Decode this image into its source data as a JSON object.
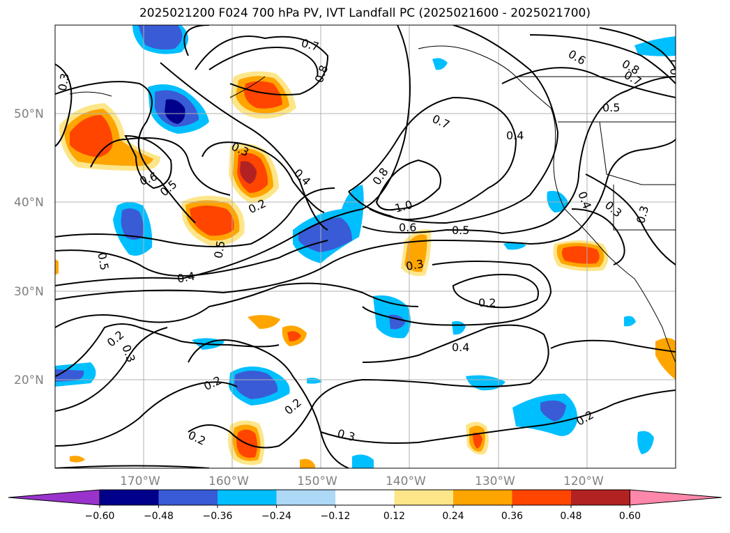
{
  "title": "2025021200 F024 700 hPa PV, IVT Landfall PC (2025021600 - 2025021700)",
  "map": {
    "lon_range": [
      -180,
      -110
    ],
    "lat_range": [
      10,
      60
    ],
    "lat_labels": [
      {
        "value": 50,
        "text": "50°N"
      },
      {
        "value": 40,
        "text": "40°N"
      },
      {
        "value": 30,
        "text": "30°N"
      },
      {
        "value": 20,
        "text": "20°N"
      }
    ],
    "lon_labels": [
      {
        "value": -170,
        "text": "170°W"
      },
      {
        "value": -160,
        "text": "160°W"
      },
      {
        "value": -150,
        "text": "150°W"
      },
      {
        "value": -140,
        "text": "140°W"
      },
      {
        "value": -130,
        "text": "130°W"
      },
      {
        "value": -120,
        "text": "120°W"
      }
    ],
    "grid": true,
    "contour_labels": [
      "0.3",
      "0.7",
      "0.8",
      "0.6",
      "0.8",
      "0.7",
      "0.5",
      "0.3",
      "0.6",
      "0.5",
      "0.4",
      "0.3",
      "0.2",
      "0.5",
      "0.5",
      "0.4",
      "0.7",
      "0.4",
      "0.8",
      "1.0",
      "0.6",
      "0.5",
      "0.3",
      "0.4",
      "0.3",
      "0.2",
      "0.2",
      "0.4",
      "0.2",
      "0.3",
      "0.2",
      "0.2",
      "0.3",
      "0.2",
      "0.1"
    ]
  },
  "colorbar": {
    "colors": [
      "#9933cc",
      "#00008b",
      "#3a5bd6",
      "#00bfff",
      "#add8f6",
      "#ffffff",
      "#fde68a",
      "#ffa500",
      "#ff4500",
      "#b22222",
      "#ff88aa"
    ],
    "ticks": [
      "−0.60",
      "−0.48",
      "−0.36",
      "−0.24",
      "−0.12",
      "0.12",
      "0.24",
      "0.36",
      "0.48",
      "0.60"
    ]
  }
}
